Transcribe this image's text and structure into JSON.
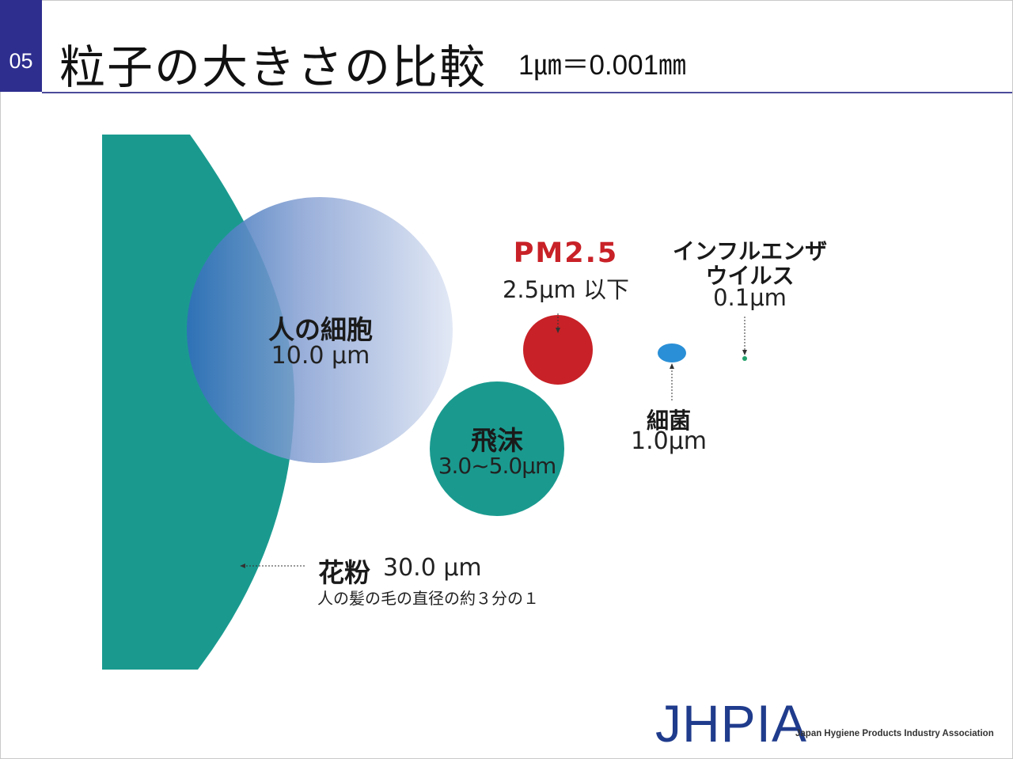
{
  "header": {
    "slide_number": "05",
    "title": "粒子の大きさの比較",
    "unit_note": "1㎛＝0.001㎜"
  },
  "particles": {
    "pollen": {
      "name": "花粉",
      "size": "30.0 μm",
      "note": "人の髪の毛の直径の約３分の１",
      "color": "#1a9a8f"
    },
    "human_cell": {
      "name": "人の細胞",
      "size": "10.0 μm",
      "color": "#9fb1d8"
    },
    "droplet": {
      "name": "飛沫",
      "size": "3.0~5.0μm",
      "color": "#1a9a8f"
    },
    "pm25": {
      "name": "PM2.5",
      "size": "2.5μm 以下",
      "color": "#c82127"
    },
    "bacteria": {
      "name": "細菌",
      "size": "1.0μm",
      "color": "#2a8fd6"
    },
    "influenza": {
      "name_line1": "インフルエンザ",
      "name_line2": "ウイルス",
      "size": "0.1μm",
      "color": "#22a06b"
    }
  },
  "logo": {
    "mark": "JHPIA",
    "org_name": "Japan Hygiene Products Industry Association"
  }
}
